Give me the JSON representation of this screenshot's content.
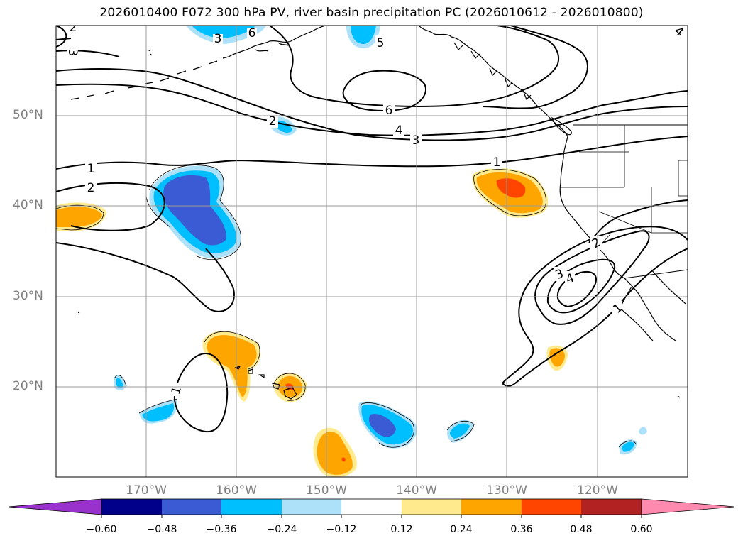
{
  "title": "2026010400 F072 300 hPa PV, river basin precipitation PC (2026010612 - 2026010800)",
  "lat_labels": [
    "50°N",
    "40°N",
    "30°N",
    "20°N"
  ],
  "lon_labels": [
    "170°W",
    "160°W",
    "150°W",
    "140°W",
    "130°W",
    "120°W"
  ],
  "pv_contour_labels": [
    "1",
    "2",
    "3",
    "4",
    "5",
    "6"
  ],
  "colorbar": {
    "tick_labels": [
      "−0.60",
      "−0.48",
      "−0.36",
      "−0.24",
      "−0.12",
      "0.12",
      "0.24",
      "0.36",
      "0.48",
      "0.60"
    ],
    "colors": [
      "#9932CC",
      "#00008B",
      "#3A5BD3",
      "#00BFFF",
      "#ADE1FA",
      "#FFFFFF",
      "#FFEA8E",
      "#FFA500",
      "#FF4500",
      "#B22222",
      "#FF8AB0"
    ]
  }
}
